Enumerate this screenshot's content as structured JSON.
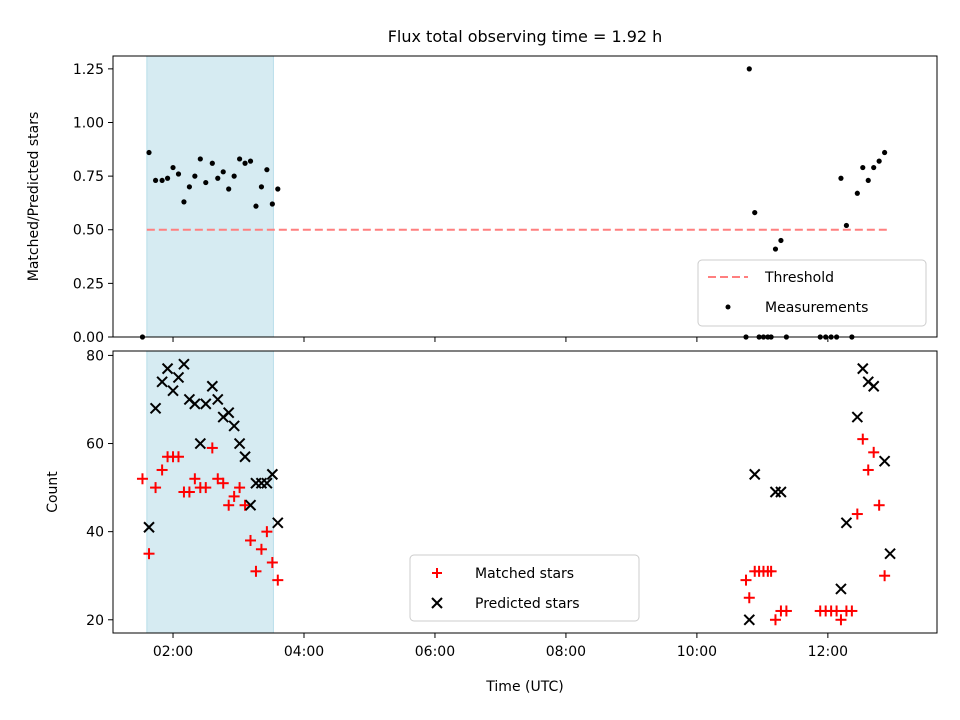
{
  "title": "Flux total observing time = 1.92 h",
  "chart_data": [
    {
      "type": "scatter",
      "panel": "top",
      "title": "Flux total observing time = 1.92 h",
      "xlabel": "",
      "ylabel": "Matched/Predicted stars",
      "ylim": [
        0,
        1.31
      ],
      "yticks": [
        "0.00",
        "0.25",
        "0.50",
        "0.75",
        "1.00",
        "1.25"
      ],
      "yticks_values": [
        0,
        0.25,
        0.5,
        0.75,
        1.0,
        1.25
      ],
      "xlim": [
        "01:05",
        "13:40"
      ],
      "x_unit": "hours UTC",
      "shaded_region": {
        "start": "01:36",
        "end": "03:32",
        "color": "#add8e6"
      },
      "threshold": {
        "name": "Threshold",
        "value": 0.5,
        "from": "01:36",
        "to": "12:54",
        "color": "#ff7f7f",
        "style": "dashed"
      },
      "series": [
        {
          "name": "Measurements",
          "color": "#000000",
          "marker": "dot",
          "points": [
            [
              "01:32",
              0.0
            ],
            [
              "01:38",
              0.86
            ],
            [
              "01:44",
              0.73
            ],
            [
              "01:50",
              0.73
            ],
            [
              "01:55",
              0.74
            ],
            [
              "02:00",
              0.79
            ],
            [
              "02:05",
              0.76
            ],
            [
              "02:10",
              0.63
            ],
            [
              "02:15",
              0.7
            ],
            [
              "02:20",
              0.75
            ],
            [
              "02:25",
              0.83
            ],
            [
              "02:30",
              0.72
            ],
            [
              "02:36",
              0.81
            ],
            [
              "02:41",
              0.74
            ],
            [
              "02:46",
              0.77
            ],
            [
              "02:51",
              0.69
            ],
            [
              "02:56",
              0.75
            ],
            [
              "03:01",
              0.83
            ],
            [
              "03:06",
              0.81
            ],
            [
              "03:11",
              0.82
            ],
            [
              "03:16",
              0.61
            ],
            [
              "03:21",
              0.7
            ],
            [
              "03:26",
              0.78
            ],
            [
              "03:31",
              0.62
            ],
            [
              "03:36",
              0.69
            ],
            [
              "10:45",
              0.0
            ],
            [
              "10:48",
              1.25
            ],
            [
              "10:53",
              0.58
            ],
            [
              "10:57",
              0.0
            ],
            [
              "11:01",
              0.0
            ],
            [
              "11:05",
              0.0
            ],
            [
              "11:08",
              0.0
            ],
            [
              "11:12",
              0.41
            ],
            [
              "11:17",
              0.45
            ],
            [
              "11:22",
              0.0
            ],
            [
              "11:53",
              0.0
            ],
            [
              "11:58",
              0.0
            ],
            [
              "12:03",
              0.0
            ],
            [
              "12:08",
              0.0
            ],
            [
              "12:12",
              0.74
            ],
            [
              "12:17",
              0.52
            ],
            [
              "12:22",
              0.0
            ],
            [
              "12:27",
              0.67
            ],
            [
              "12:32",
              0.79
            ],
            [
              "12:37",
              0.73
            ],
            [
              "12:42",
              0.79
            ],
            [
              "12:47",
              0.82
            ],
            [
              "12:52",
              0.86
            ]
          ]
        }
      ],
      "legend": {
        "placement": "lower-right",
        "entries": [
          "Threshold",
          "Measurements"
        ]
      }
    },
    {
      "type": "scatter",
      "panel": "bottom",
      "xlabel": "Time (UTC)",
      "ylabel": "Count",
      "ylim": [
        17,
        81
      ],
      "yticks": [
        "20",
        "40",
        "60",
        "80"
      ],
      "yticks_values": [
        20,
        40,
        60,
        80
      ],
      "xlim": [
        "01:05",
        "13:40"
      ],
      "xticks": [
        "02:00",
        "04:00",
        "06:00",
        "08:00",
        "10:00",
        "12:00"
      ],
      "xticks_values": [
        2,
        4,
        6,
        8,
        10,
        12
      ],
      "shaded_region": {
        "start": "01:36",
        "end": "03:32",
        "color": "#add8e6"
      },
      "series": [
        {
          "name": "Matched stars",
          "color": "#ff0000",
          "marker": "plus",
          "points": [
            [
              "01:32",
              52
            ],
            [
              "01:38",
              35
            ],
            [
              "01:44",
              50
            ],
            [
              "01:50",
              54
            ],
            [
              "01:55",
              57
            ],
            [
              "02:00",
              57
            ],
            [
              "02:05",
              57
            ],
            [
              "02:10",
              49
            ],
            [
              "02:15",
              49
            ],
            [
              "02:20",
              52
            ],
            [
              "02:25",
              50
            ],
            [
              "02:30",
              50
            ],
            [
              "02:36",
              59
            ],
            [
              "02:41",
              52
            ],
            [
              "02:46",
              51
            ],
            [
              "02:51",
              46
            ],
            [
              "02:56",
              48
            ],
            [
              "03:01",
              50
            ],
            [
              "03:06",
              46
            ],
            [
              "03:11",
              38
            ],
            [
              "03:16",
              31
            ],
            [
              "03:21",
              36
            ],
            [
              "03:26",
              40
            ],
            [
              "03:31",
              33
            ],
            [
              "03:36",
              29
            ],
            [
              "10:45",
              29
            ],
            [
              "10:48",
              25
            ],
            [
              "10:53",
              31
            ],
            [
              "10:57",
              31
            ],
            [
              "11:01",
              31
            ],
            [
              "11:05",
              31
            ],
            [
              "11:08",
              31
            ],
            [
              "11:12",
              20
            ],
            [
              "11:17",
              22
            ],
            [
              "11:22",
              22
            ],
            [
              "11:53",
              22
            ],
            [
              "11:58",
              22
            ],
            [
              "12:03",
              22
            ],
            [
              "12:08",
              22
            ],
            [
              "12:12",
              20
            ],
            [
              "12:17",
              22
            ],
            [
              "12:22",
              22
            ],
            [
              "12:27",
              44
            ],
            [
              "12:32",
              61
            ],
            [
              "12:37",
              54
            ],
            [
              "12:42",
              58
            ],
            [
              "12:47",
              46
            ],
            [
              "12:52",
              30
            ]
          ]
        },
        {
          "name": "Predicted stars",
          "color": "#000000",
          "marker": "x",
          "points": [
            [
              "01:38",
              41
            ],
            [
              "01:44",
              68
            ],
            [
              "01:50",
              74
            ],
            [
              "01:55",
              77
            ],
            [
              "02:00",
              72
            ],
            [
              "02:05",
              75
            ],
            [
              "02:10",
              78
            ],
            [
              "02:15",
              70
            ],
            [
              "02:20",
              69
            ],
            [
              "02:25",
              60
            ],
            [
              "02:30",
              69
            ],
            [
              "02:36",
              73
            ],
            [
              "02:41",
              70
            ],
            [
              "02:46",
              66
            ],
            [
              "02:51",
              67
            ],
            [
              "02:56",
              64
            ],
            [
              "03:01",
              60
            ],
            [
              "03:06",
              57
            ],
            [
              "03:11",
              46
            ],
            [
              "03:16",
              51
            ],
            [
              "03:21",
              51
            ],
            [
              "03:26",
              51
            ],
            [
              "03:31",
              53
            ],
            [
              "03:36",
              42
            ],
            [
              "10:48",
              20
            ],
            [
              "10:53",
              53
            ],
            [
              "11:12",
              49
            ],
            [
              "11:17",
              49
            ],
            [
              "12:12",
              27
            ],
            [
              "12:17",
              42
            ],
            [
              "12:27",
              66
            ],
            [
              "12:32",
              77
            ],
            [
              "12:37",
              74
            ],
            [
              "12:42",
              73
            ],
            [
              "12:52",
              56
            ],
            [
              "12:57",
              35
            ]
          ]
        }
      ],
      "legend": {
        "placement": "lower-center",
        "entries": [
          "Matched stars",
          "Predicted stars"
        ]
      }
    }
  ]
}
